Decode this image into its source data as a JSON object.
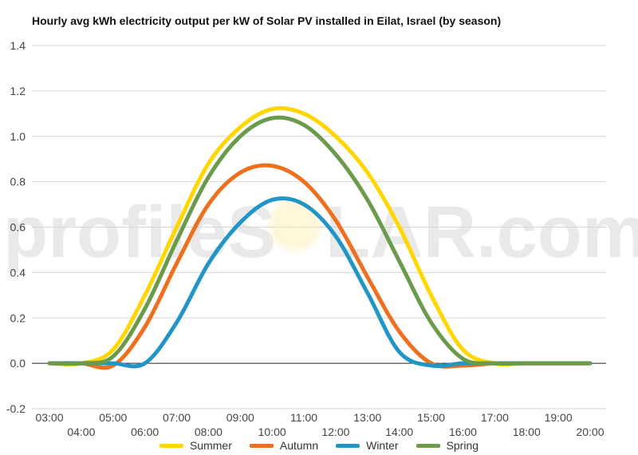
{
  "chart_data": {
    "type": "line",
    "title": "Hourly avg kWh electricity output per kW of Solar PV installed in Eilat, Israel (by season)",
    "watermark": {
      "before": "profileS",
      "after": "LAR.com"
    },
    "xlabel": "",
    "ylabel": "",
    "x_ticks": [
      "03:00",
      "04:00",
      "05:00",
      "06:00",
      "07:00",
      "08:00",
      "09:00",
      "10:00",
      "11:00",
      "12:00",
      "13:00",
      "14:00",
      "15:00",
      "16:00",
      "17:00",
      "18:00",
      "19:00",
      "20:00"
    ],
    "y_ticks": [
      "-0.2",
      "0.0",
      "0.2",
      "0.4",
      "0.6",
      "0.8",
      "1.0",
      "1.2",
      "1.4"
    ],
    "ylim": [
      -0.2,
      1.4
    ],
    "grid": true,
    "legend_position": "bottom",
    "x": [
      3,
      4,
      5,
      6,
      7,
      8,
      9,
      10,
      11,
      12,
      13,
      14,
      15,
      16,
      17,
      18,
      19,
      20
    ],
    "series": [
      {
        "name": "Summer",
        "color": "#FFD600",
        "values": [
          0.0,
          0.0,
          0.06,
          0.3,
          0.6,
          0.88,
          1.04,
          1.12,
          1.1,
          1.0,
          0.84,
          0.6,
          0.3,
          0.06,
          0.0,
          0.0,
          0.0,
          0.0
        ]
      },
      {
        "name": "Autumn",
        "color": "#EE6F1E",
        "values": [
          0.0,
          0.0,
          -0.01,
          0.16,
          0.44,
          0.7,
          0.84,
          0.87,
          0.8,
          0.63,
          0.38,
          0.14,
          0.0,
          -0.01,
          0.0,
          0.0,
          0.0,
          0.0
        ]
      },
      {
        "name": "Winter",
        "color": "#2196C6",
        "values": [
          0.0,
          0.0,
          0.0,
          0.0,
          0.18,
          0.44,
          0.62,
          0.72,
          0.7,
          0.56,
          0.31,
          0.05,
          -0.01,
          0.0,
          0.0,
          0.0,
          0.0,
          0.0
        ]
      },
      {
        "name": "Spring",
        "color": "#6A9A4A",
        "values": [
          0.0,
          0.0,
          0.03,
          0.24,
          0.54,
          0.82,
          1.0,
          1.08,
          1.05,
          0.92,
          0.72,
          0.45,
          0.18,
          0.02,
          0.0,
          0.0,
          0.0,
          0.0
        ]
      }
    ]
  }
}
